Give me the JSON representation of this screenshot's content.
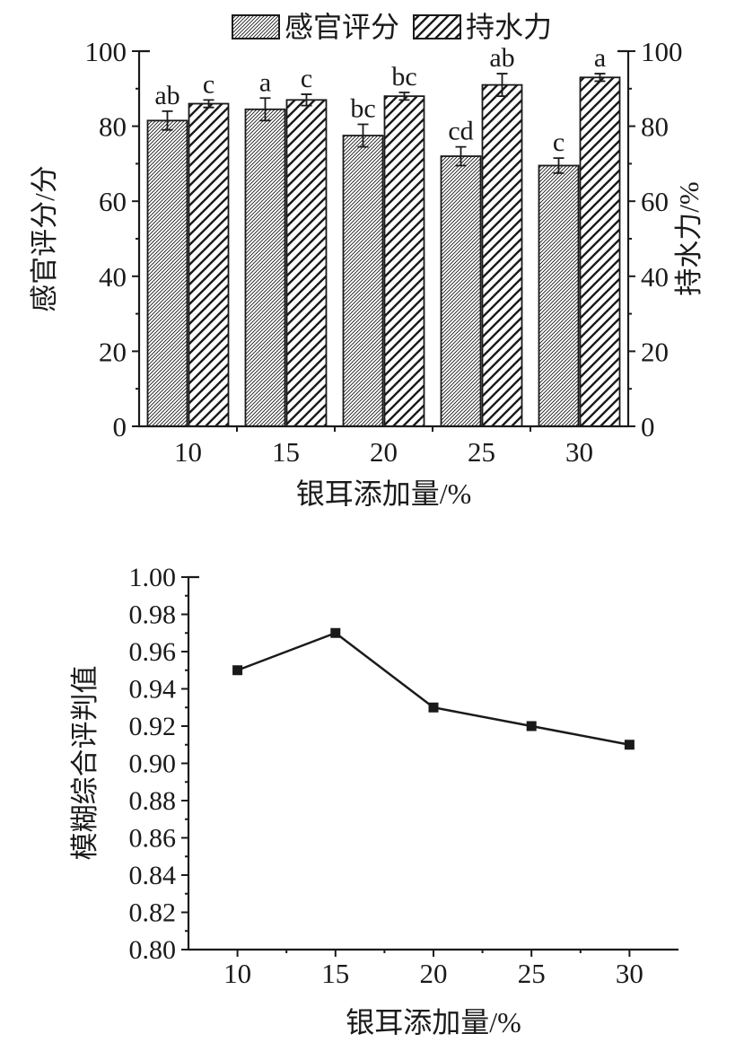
{
  "style": {
    "ink": "#1a1a1a",
    "background": "#ffffff"
  },
  "chart_data": [
    {
      "type": "bar",
      "title": "",
      "categories": [
        "10",
        "15",
        "20",
        "25",
        "30"
      ],
      "xlabel": "银耳添加量/%",
      "ylabel_left": "感官评分/分",
      "ylabel_right": "持水力/%",
      "ylim": [
        0,
        100
      ],
      "y_major_step": 20,
      "y_minor_step": 10,
      "y_tick_labels": [
        "0",
        "20",
        "40",
        "60",
        "80",
        "100"
      ],
      "grid": false,
      "legend_position": "top-center",
      "series": [
        {
          "name": "感官评分",
          "axis": "left",
          "pattern": "dense-hatch",
          "values": [
            81.5,
            84.5,
            77.5,
            72,
            69.5
          ],
          "errors": [
            2.5,
            3,
            3,
            2.5,
            2
          ],
          "sig_letters": [
            "ab",
            "a",
            "bc",
            "cd",
            "c"
          ]
        },
        {
          "name": "持水力",
          "axis": "right",
          "pattern": "sparse-hatch",
          "values": [
            86,
            87,
            88,
            91,
            93
          ],
          "errors": [
            1,
            1.5,
            1,
            3,
            1
          ],
          "sig_letters": [
            "c",
            "c",
            "bc",
            "ab",
            "a"
          ]
        }
      ]
    },
    {
      "type": "line",
      "title": "",
      "x": [
        "10",
        "15",
        "20",
        "25",
        "30"
      ],
      "values": [
        0.95,
        0.97,
        0.93,
        0.92,
        0.91
      ],
      "xlabel": "银耳添加量/%",
      "ylabel": "模糊综合评判值",
      "ylim": [
        0.8,
        1.0
      ],
      "y_major_step": 0.02,
      "y_minor_step": 0.01,
      "y_tick_labels": [
        "1.00",
        "0.98",
        "0.96",
        "0.94",
        "0.92",
        "0.90",
        "0.88",
        "0.86",
        "0.84",
        "0.82",
        "0.80"
      ],
      "marker": "filled-square",
      "grid": false
    }
  ]
}
